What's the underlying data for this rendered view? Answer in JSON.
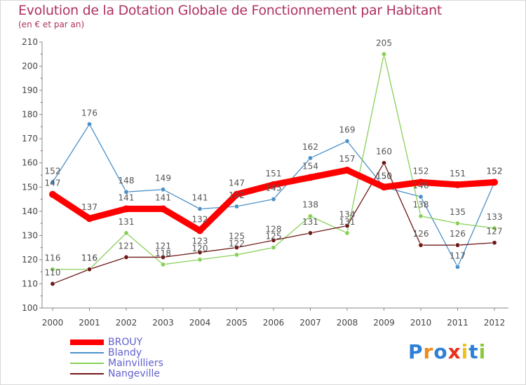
{
  "page": {
    "title": "Evolution de la Dotation Globale de Fonctionnement par Habitant",
    "subtitle": "(en € et par an)",
    "brand": "Proxiti"
  },
  "chart_data": {
    "type": "line",
    "title": "Evolution de la Dotation Globale de Fonctionnement par Habitant",
    "subtitle": "(en € et par an)",
    "xlabel": "",
    "ylabel": "",
    "x": [
      "2000",
      "2001",
      "2002",
      "2003",
      "2004",
      "2005",
      "2006",
      "2007",
      "2008",
      "2009",
      "2010",
      "2011",
      "2012"
    ],
    "ylim": [
      100,
      210
    ],
    "yticks": [
      100,
      110,
      120,
      130,
      140,
      150,
      160,
      170,
      180,
      190,
      200,
      210
    ],
    "grid": false,
    "legend_position": "bottom-left",
    "series": [
      {
        "name": "BROUY",
        "color": "#ff0000",
        "values": [
          147,
          137,
          141,
          141,
          132,
          147,
          151,
          154,
          157,
          150,
          152,
          151,
          152
        ]
      },
      {
        "name": "Blandy",
        "color": "#4a90c8",
        "values": [
          152,
          176,
          148,
          149,
          141,
          142,
          145,
          162,
          169,
          150,
          146,
          117,
          152
        ]
      },
      {
        "name": "Mainvilliers",
        "color": "#88d058",
        "values": [
          116,
          116,
          131,
          118,
          120,
          122,
          125,
          138,
          131,
          205,
          138,
          135,
          133
        ]
      },
      {
        "name": "Nangeville",
        "color": "#701818",
        "values": [
          110,
          116,
          121,
          121,
          123,
          125,
          128,
          131,
          134,
          160,
          126,
          126,
          127
        ]
      }
    ]
  }
}
